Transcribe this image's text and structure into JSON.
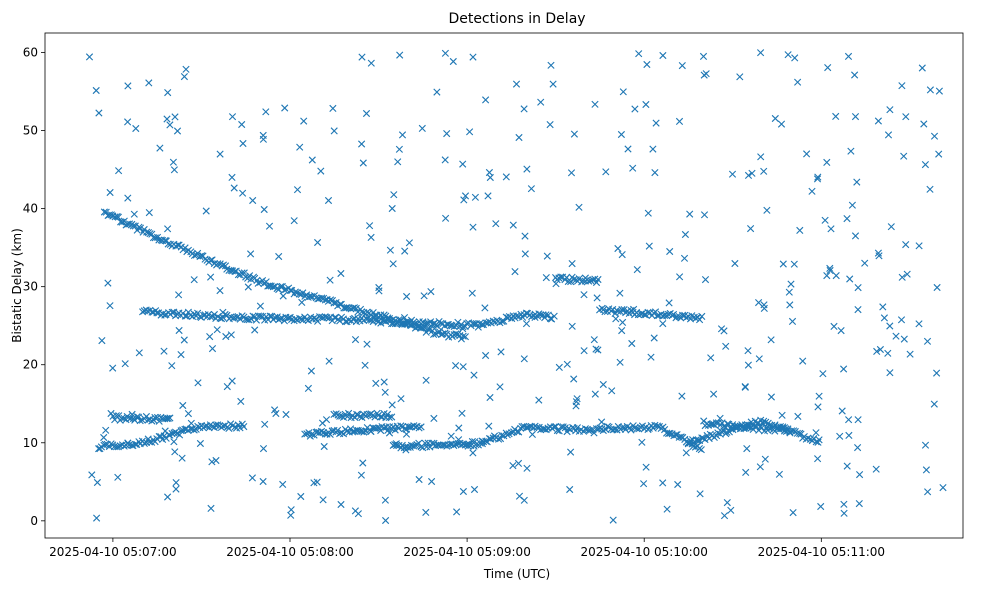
{
  "chart_data": {
    "type": "scatter",
    "title": "Detections in Delay",
    "xlabel": "Time (UTC)",
    "ylabel": "Bistatic Delay (km)",
    "x_axis_type": "datetime",
    "xlim": [
      "2025-04-10 05:06:37",
      "2025-04-10 05:11:48"
    ],
    "ylim": [
      -2.2,
      62.5
    ],
    "x_ticks": [
      "2025-04-10 05:07:00",
      "2025-04-10 05:08:00",
      "2025-04-10 05:09:00",
      "2025-04-10 05:10:00",
      "2025-04-10 05:11:00"
    ],
    "y_ticks": [
      0,
      10,
      20,
      30,
      40,
      50,
      60
    ],
    "marker": "x",
    "grid": false,
    "colors": {
      "series": "#1f77b4"
    },
    "time_range": [
      "2025-04-10 05:06:52",
      "2025-04-10 05:11:42"
    ],
    "series": [
      {
        "points_seed": 1337,
        "clutter_count": 460,
        "tracks": [
          {
            "points": [
              [
                "2025-04-10 05:06:57",
                39.5
              ],
              [
                "2025-04-10 05:07:12",
                36.8
              ],
              [
                "2025-04-10 05:07:30",
                33.8
              ],
              [
                "2025-04-10 05:07:50",
                30.6
              ],
              [
                "2025-04-10 05:08:10",
                28.4
              ],
              [
                "2025-04-10 05:08:30",
                26.3
              ],
              [
                "2025-04-10 05:08:50",
                24.0
              ],
              [
                "2025-04-10 05:09:00",
                23.5
              ]
            ]
          },
          {
            "points": [
              [
                "2025-04-10 05:07:10",
                26.8
              ],
              [
                "2025-04-10 05:07:45",
                26.0
              ],
              [
                "2025-04-10 05:08:20",
                25.8
              ],
              [
                "2025-04-10 05:09:05",
                25.0
              ],
              [
                "2025-04-10 05:09:20",
                26.5
              ],
              [
                "2025-04-10 05:09:30",
                26.0
              ]
            ]
          },
          {
            "points": [
              [
                "2025-04-10 05:09:45",
                27.0
              ],
              [
                "2025-04-10 05:10:05",
                26.5
              ],
              [
                "2025-04-10 05:10:20",
                26.0
              ]
            ]
          },
          {
            "points": [
              [
                "2025-04-10 05:09:30",
                31.0
              ],
              [
                "2025-04-10 05:09:45",
                30.8
              ]
            ]
          },
          {
            "points": [
              [
                "2025-04-10 05:06:55",
                9.5
              ],
              [
                "2025-04-10 05:07:10",
                10.0
              ],
              [
                "2025-04-10 05:07:30",
                12.0
              ],
              [
                "2025-04-10 05:07:45",
                12.2
              ]
            ]
          },
          {
            "points": [
              [
                "2025-04-10 05:07:00",
                13.2
              ],
              [
                "2025-04-10 05:07:20",
                13.0
              ]
            ]
          },
          {
            "points": [
              [
                "2025-04-10 05:08:05",
                11.0
              ],
              [
                "2025-04-10 05:08:30",
                11.8
              ],
              [
                "2025-04-10 05:08:45",
                12.0
              ]
            ]
          },
          {
            "points": [
              [
                "2025-04-10 05:08:15",
                13.5
              ],
              [
                "2025-04-10 05:08:35",
                13.5
              ]
            ]
          },
          {
            "points": [
              [
                "2025-04-10 05:08:35",
                9.5
              ],
              [
                "2025-04-10 05:09:05",
                10.0
              ],
              [
                "2025-04-10 05:09:20",
                12.0
              ],
              [
                "2025-04-10 05:09:45",
                11.5
              ]
            ]
          },
          {
            "points": [
              [
                "2025-04-10 05:09:45",
                11.8
              ],
              [
                "2025-04-10 05:10:05",
                12.0
              ],
              [
                "2025-04-10 05:10:20",
                9.2
              ]
            ]
          },
          {
            "points": [
              [
                "2025-04-10 05:10:15",
                10.0
              ],
              [
                "2025-04-10 05:10:40",
                12.8
              ],
              [
                "2025-04-10 05:11:00",
                10.0
              ]
            ]
          },
          {
            "points": [
              [
                "2025-04-10 05:10:20",
                12.5
              ],
              [
                "2025-04-10 05:10:50",
                11.5
              ]
            ]
          }
        ]
      }
    ]
  }
}
